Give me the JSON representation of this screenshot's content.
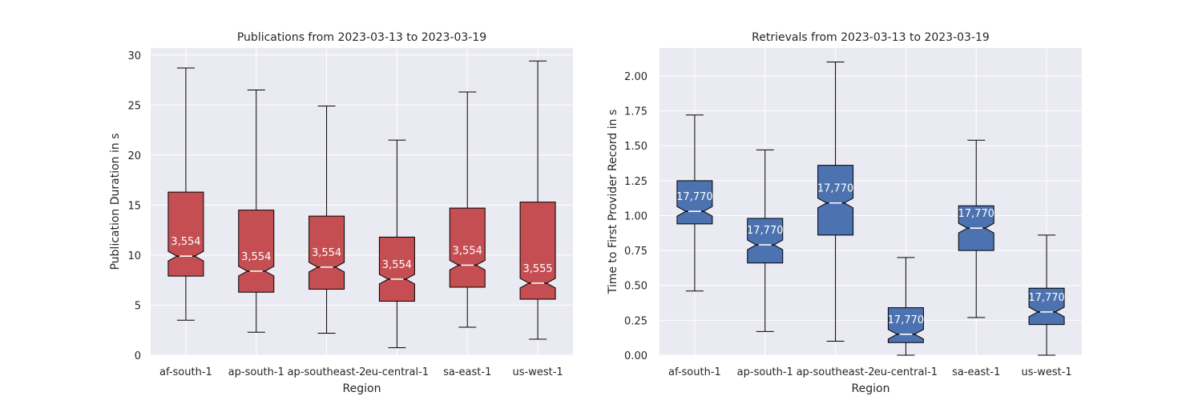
{
  "chart_data": [
    {
      "type": "box",
      "title": "Publications from 2023-03-13 to 2023-03-19",
      "xlabel": "Region",
      "ylabel": "Publication Duration in s",
      "ylim": [
        0,
        30.7
      ],
      "yticks": [
        0,
        5,
        10,
        15,
        20,
        25,
        30
      ],
      "ytick_labels": [
        "0",
        "5",
        "10",
        "15",
        "20",
        "25",
        "30"
      ],
      "notched": true,
      "color": "#c44e52",
      "grid": true,
      "categories": [
        "af-south-1",
        "ap-south-1",
        "ap-southeast-2",
        "eu-central-1",
        "sa-east-1",
        "us-west-1"
      ],
      "boxes": [
        {
          "whislo": 3.5,
          "q1": 7.9,
          "med": 9.9,
          "q3": 16.3,
          "whishi": 28.7,
          "count": "3,554"
        },
        {
          "whislo": 2.3,
          "q1": 6.3,
          "med": 8.4,
          "q3": 14.5,
          "whishi": 26.5,
          "count": "3,554"
        },
        {
          "whislo": 2.2,
          "q1": 6.6,
          "med": 8.8,
          "q3": 13.9,
          "whishi": 24.9,
          "count": "3,554"
        },
        {
          "whislo": 0.75,
          "q1": 5.4,
          "med": 7.6,
          "q3": 11.8,
          "whishi": 21.5,
          "count": "3,554"
        },
        {
          "whislo": 2.8,
          "q1": 6.8,
          "med": 9.0,
          "q3": 14.7,
          "whishi": 26.3,
          "count": "3,554"
        },
        {
          "whislo": 1.6,
          "q1": 5.6,
          "med": 7.2,
          "q3": 15.3,
          "whishi": 29.4,
          "count": "3,555"
        }
      ]
    },
    {
      "type": "box",
      "title": "Retrievals from 2023-03-13 to 2023-03-19",
      "xlabel": "Region",
      "ylabel": "Time to First Provider Record in s",
      "ylim": [
        0,
        2.2
      ],
      "yticks": [
        0,
        0.25,
        0.5,
        0.75,
        1.0,
        1.25,
        1.5,
        1.75,
        2.0
      ],
      "ytick_labels": [
        "0.00",
        "0.25",
        "0.50",
        "0.75",
        "1.00",
        "1.25",
        "1.50",
        "1.75",
        "2.00"
      ],
      "notched": true,
      "color": "#4c72b0",
      "grid": true,
      "categories": [
        "af-south-1",
        "ap-south-1",
        "ap-southeast-2",
        "eu-central-1",
        "sa-east-1",
        "us-west-1"
      ],
      "boxes": [
        {
          "whislo": 0.46,
          "q1": 0.94,
          "med": 1.03,
          "q3": 1.25,
          "whishi": 1.72,
          "count": "17,770"
        },
        {
          "whislo": 0.17,
          "q1": 0.66,
          "med": 0.79,
          "q3": 0.98,
          "whishi": 1.47,
          "count": "17,770"
        },
        {
          "whislo": 0.1,
          "q1": 0.86,
          "med": 1.09,
          "q3": 1.36,
          "whishi": 2.1,
          "count": "17,770"
        },
        {
          "whislo": 0.0,
          "q1": 0.09,
          "med": 0.15,
          "q3": 0.34,
          "whishi": 0.7,
          "count": "17,770"
        },
        {
          "whislo": 0.27,
          "q1": 0.75,
          "med": 0.91,
          "q3": 1.07,
          "whishi": 1.54,
          "count": "17,770"
        },
        {
          "whislo": 0.0,
          "q1": 0.22,
          "med": 0.31,
          "q3": 0.48,
          "whishi": 0.86,
          "count": "17,770"
        }
      ]
    }
  ]
}
